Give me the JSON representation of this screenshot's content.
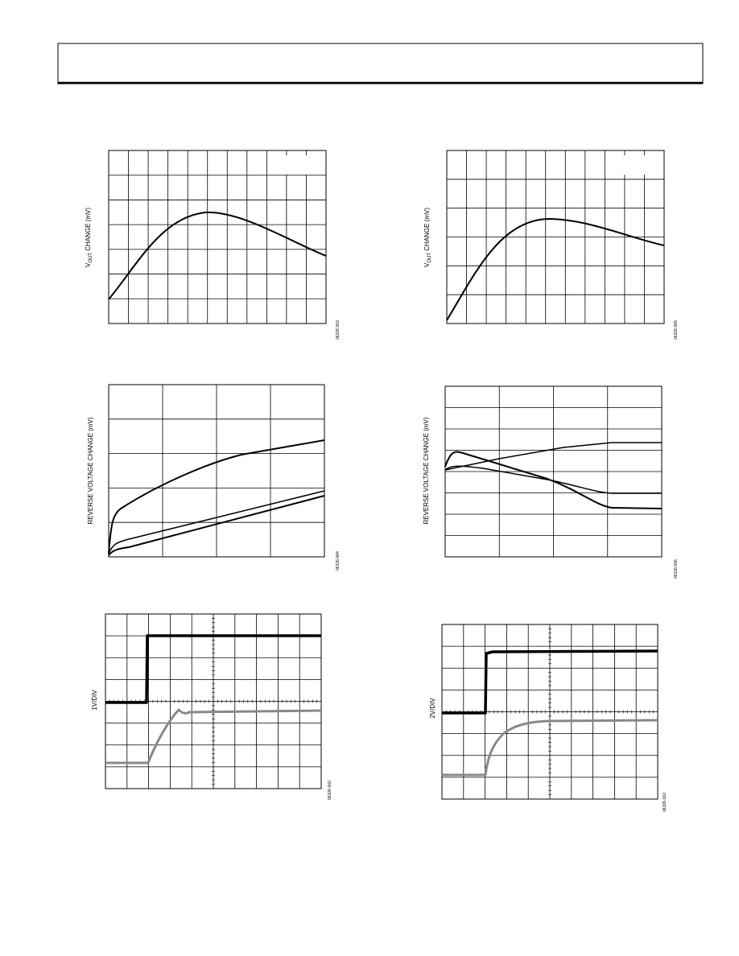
{
  "figures": [
    {
      "y_label": {
        "main": "V",
        "sub": "OUT",
        "rest": " CHANGE (mV)"
      },
      "figure_id": "06326-003"
    },
    {
      "y_label": {
        "main": "V",
        "sub": "OUT",
        "rest": " CHANGE (mV)"
      },
      "figure_id": "06326-005"
    },
    {
      "y_label": {
        "main": "REVERSE VOLTAGE CHANGE (mV)"
      },
      "figure_id": "06326-004"
    },
    {
      "y_label": {
        "main": "REVERSE VOLTAGE CHANGE (mV)"
      },
      "figure_id": "06326-006"
    },
    {
      "y_label": {
        "main": "1V/DIV"
      },
      "figure_id": "06326-002"
    },
    {
      "y_label": {
        "main": "2V/DIV"
      },
      "figure_id": "06326-010"
    }
  ]
}
